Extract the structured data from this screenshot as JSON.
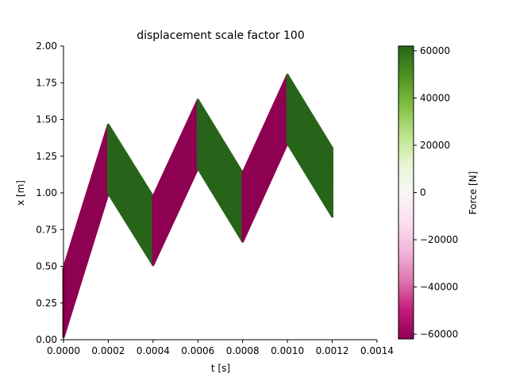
{
  "chart_data": {
    "type": "line",
    "title": "displacement scale factor 100",
    "xlabel": "t [s]",
    "ylabel": "x [m]",
    "xlim": [
      0.0,
      0.0014
    ],
    "ylim": [
      0.0,
      2.0
    ],
    "x_ticks": [
      "0.0000",
      "0.0002",
      "0.0004",
      "0.0006",
      "0.0008",
      "0.0010",
      "0.0012",
      "0.0014"
    ],
    "y_ticks": [
      "0.00",
      "0.25",
      "0.50",
      "0.75",
      "1.00",
      "1.25",
      "1.50",
      "1.75",
      "2.00"
    ],
    "grid": false,
    "colorbar": {
      "label": "Force [N]",
      "range": [
        -62000,
        62000
      ],
      "ticks": [
        "60000",
        "40000",
        "20000",
        "0",
        "−20000",
        "−40000",
        "−60000"
      ],
      "colormap": "PiYG",
      "colors": [
        "#8e0152",
        "#c51b7d",
        "#de77ae",
        "#f1b6da",
        "#fde0ef",
        "#f7f7f7",
        "#e6f5d0",
        "#b8e186",
        "#7fbc41",
        "#4d9221",
        "#276419"
      ]
    },
    "series": [
      {
        "start_t": 0.0,
        "end_t": 0.0002,
        "start_x": 0.0,
        "end_x": 0.98,
        "force": -62000
      },
      {
        "start_t": 0.0002,
        "end_t": 0.0004,
        "start_x": 0.98,
        "end_x": 0.49,
        "force": 62000
      },
      {
        "start_t": 0.0004,
        "end_t": 0.0006,
        "start_x": 0.49,
        "end_x": 1.15,
        "force": -62000
      },
      {
        "start_t": 0.0006,
        "end_t": 0.0008,
        "start_x": 1.15,
        "end_x": 0.65,
        "force": 62000
      },
      {
        "start_t": 0.0008,
        "end_t": 0.001,
        "start_x": 0.65,
        "end_x": 1.32,
        "force": -62000
      },
      {
        "start_t": 0.001,
        "end_t": 0.0012,
        "start_x": 1.32,
        "end_x": 0.82,
        "force": 62000
      }
    ]
  }
}
